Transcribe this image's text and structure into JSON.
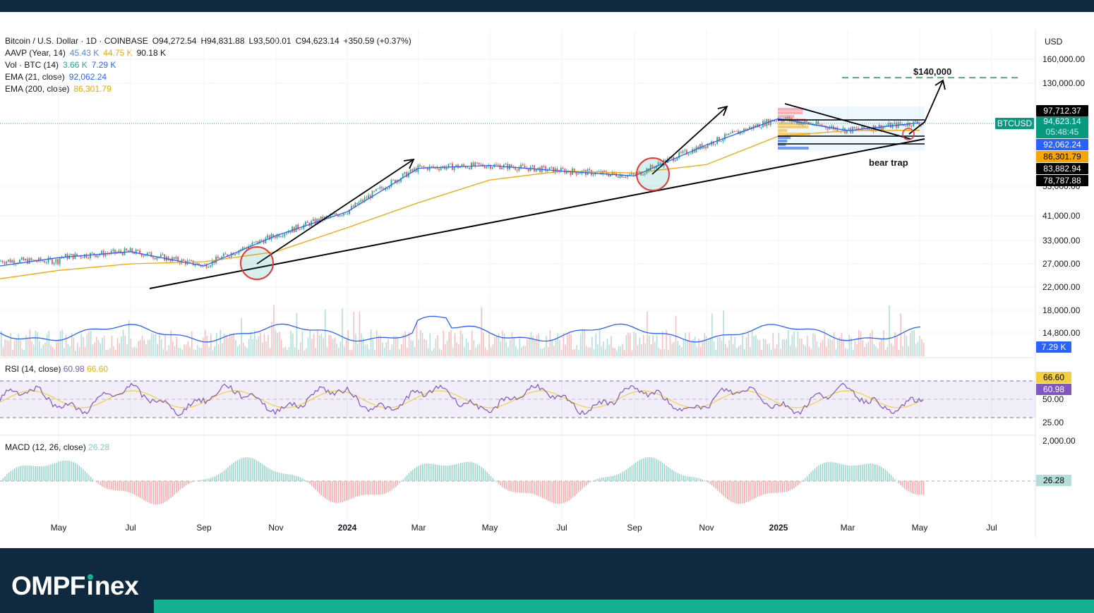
{
  "header": {
    "symbol": "Bitcoin / U.S. Dollar · 1D · COINBASE",
    "open": "O94,272.54",
    "high": "H94,831.88",
    "low": "L93,500.01",
    "close": "C94,623.14",
    "change": "+350.59 (+0.37%)"
  },
  "indicators": {
    "aavp": {
      "label": "AAVP (Year, 14)",
      "v1": "45.43 K",
      "v2": "44.75 K",
      "v3": "90.18 K"
    },
    "vol": {
      "label": "Vol · BTC (14)",
      "v1": "3.66 K",
      "v2": "7.29 K"
    },
    "ema21": {
      "label": "EMA (21, close)",
      "value": "92,062.24"
    },
    "ema200": {
      "label": "EMA (200, close)",
      "value": "86,301.79"
    },
    "rsi": {
      "label": "RSI (14, close)",
      "v1": "60.98",
      "v2": "66.60"
    },
    "macd": {
      "label": "MACD (12, 26, close)",
      "value": "26.28"
    }
  },
  "axis": {
    "currency": "USD",
    "price_ticks": [
      "160,000.00",
      "130,000.00",
      "53,000.00",
      "41,000.00",
      "33,000.00",
      "27,000.00",
      "22,000.00",
      "18,000.00",
      "14,800.00"
    ],
    "rsi_ticks": [
      "50.00",
      "25.00"
    ],
    "macd_ticks": [
      "2,000.00"
    ],
    "time_labels": [
      "May",
      "Jul",
      "Sep",
      "Nov",
      "2024",
      "Mar",
      "May",
      "Jul",
      "Sep",
      "Nov",
      "2025",
      "Mar",
      "May",
      "Jul"
    ]
  },
  "tags": {
    "symbol_tag": "BTCUSD",
    "resistance": "97,712.37",
    "last_price": "94,623.14",
    "countdown": "05:48:45",
    "ema21": "92,062.24",
    "ema200": "86,301.79",
    "support1": "83,882.94",
    "support2": "78,787.88",
    "vol": "7.29 K",
    "rsi_ma": "66.60",
    "rsi": "60.98",
    "macd": "26.28"
  },
  "annotations": {
    "target": "$140,000",
    "bear_trap": "bear trap"
  },
  "colors": {
    "up": "#26a69a",
    "down": "#ef5350",
    "ema21": "#2962ff",
    "ema200": "#f7a600",
    "rsi": "#7e57c2",
    "rsi_ma": "#f4d03f",
    "target": "#1aa34a",
    "navy": "#0f2a3e",
    "brand_green": "#13b191"
  },
  "brand": {
    "logo_prefix": "OMPF",
    "logo_suffix": "nex"
  },
  "chart_data": {
    "type": "line",
    "title": "Bitcoin / U.S. Dollar · 1D · COINBASE",
    "y_scale": "log",
    "x": [
      "May",
      "Jul",
      "Sep",
      "Nov",
      "2024",
      "Mar",
      "May",
      "Jul",
      "Sep",
      "Nov",
      "2025",
      "Mar",
      "May"
    ],
    "series": [
      {
        "name": "EMA (21, close)",
        "values": [
          28500,
          30000,
          26500,
          34500,
          42500,
          62000,
          63500,
          60500,
          58000,
          76000,
          95500,
          86000,
          92062.24
        ]
      },
      {
        "name": "EMA (200, close)",
        "values": [
          25500,
          27000,
          27500,
          30000,
          37000,
          46000,
          56000,
          60500,
          59500,
          64000,
          82000,
          86000,
          86301.79
        ]
      }
    ],
    "levels": {
      "target": 140000,
      "resistance": 97712.37,
      "last_price": 94623.14,
      "support1": 83882.94,
      "support2": 78787.88
    },
    "ylim": [
      14800,
      160000
    ]
  }
}
